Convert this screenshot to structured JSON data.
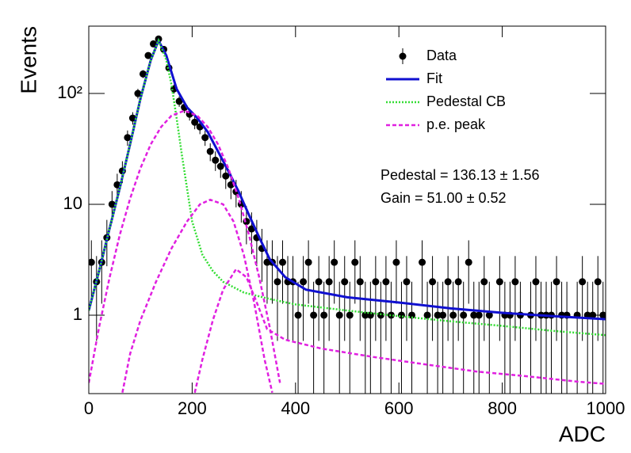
{
  "chart_data": {
    "type": "line",
    "y_label": "Events",
    "x_label": "ADC",
    "xlim": [
      0,
      1000
    ],
    "xticks": [
      0,
      200,
      400,
      600,
      800,
      1000
    ],
    "ylim": [
      0.196,
      405
    ],
    "yticks": [
      1,
      10,
      {
        "value": 100,
        "label": "10²"
      }
    ],
    "log_y": true,
    "legend": "upper right",
    "annotations": [
      "Pedestal = 136.13 ± 1.56",
      "Gain = 51.00 ± 0.52"
    ],
    "series": [
      {
        "name": "Data",
        "type": "errorbar",
        "color": "#000000",
        "x": [
          5,
          15,
          25,
          35,
          45,
          55,
          65,
          75,
          85,
          95,
          105,
          115,
          125,
          135,
          145,
          155,
          165,
          175,
          185,
          195,
          205,
          215,
          225,
          235,
          245,
          255,
          265,
          275,
          285,
          295,
          305,
          315,
          325,
          335,
          345,
          355,
          365,
          375,
          385,
          395,
          405,
          415,
          425,
          435,
          445,
          455,
          465,
          475,
          485,
          495,
          505,
          515,
          525,
          535,
          545,
          555,
          565,
          575,
          585,
          595,
          605,
          615,
          625,
          635,
          645,
          655,
          665,
          675,
          685,
          695,
          705,
          715,
          725,
          735,
          745,
          755,
          765,
          775,
          785,
          795,
          805,
          815,
          825,
          835,
          845,
          855,
          865,
          875,
          885,
          895,
          905,
          915,
          925,
          935,
          945,
          955,
          965,
          975,
          985,
          995
        ],
        "values": [
          3,
          2,
          3,
          5,
          10,
          15,
          20,
          40,
          60,
          100,
          150,
          220,
          280,
          310,
          250,
          170,
          110,
          85,
          75,
          65,
          55,
          50,
          40,
          30,
          25,
          22,
          18,
          15,
          13,
          10,
          7,
          6,
          5,
          4,
          3,
          3,
          2,
          3,
          2,
          2,
          1,
          2,
          3,
          1,
          2,
          1,
          2,
          3,
          1,
          2,
          1,
          3,
          2,
          1,
          1,
          2,
          1,
          2,
          1,
          3,
          1,
          2,
          1,
          null,
          3,
          1,
          2,
          1,
          1,
          2,
          1,
          2,
          1,
          3,
          1,
          1,
          2,
          1,
          null,
          2,
          1,
          1,
          2,
          1,
          null,
          1,
          2,
          1,
          1,
          1,
          2,
          1,
          1,
          null,
          1,
          2,
          1,
          1,
          2,
          1
        ]
      },
      {
        "name": "Fit",
        "type": "line",
        "color": "#1010d0",
        "dash": "none",
        "x": [
          0,
          20,
          40,
          60,
          80,
          100,
          120,
          135,
          150,
          170,
          190,
          210,
          230,
          250,
          270,
          290,
          310,
          330,
          350,
          380,
          420,
          500,
          600,
          700,
          800,
          900,
          1000
        ],
        "values": [
          1.1,
          2.5,
          6,
          14,
          35,
          90,
          200,
          300,
          220,
          110,
          75,
          60,
          45,
          30,
          20,
          13,
          8,
          5,
          3.2,
          2.2,
          1.7,
          1.45,
          1.3,
          1.15,
          1.05,
          0.98,
          0.92
        ]
      },
      {
        "name": "Pedestal CB",
        "type": "line",
        "color": "#33dd33",
        "dash": "2,2",
        "x": [
          0,
          20,
          40,
          60,
          80,
          100,
          120,
          135,
          150,
          160,
          170,
          180,
          190,
          200,
          220,
          240,
          260,
          300,
          350,
          400,
          500,
          600,
          700,
          800,
          900,
          1000
        ],
        "values": [
          1.1,
          2.5,
          6,
          14,
          35,
          90,
          200,
          300,
          200,
          120,
          60,
          28,
          14,
          7,
          3.5,
          2.5,
          2.0,
          1.6,
          1.4,
          1.25,
          1.1,
          0.98,
          0.88,
          0.8,
          0.72,
          0.66
        ]
      },
      {
        "name": "p.e. peak",
        "type": "line",
        "color": "#e020e0",
        "dash": "5,3",
        "x": [
          0,
          20,
          40,
          60,
          80,
          100,
          120,
          140,
          160,
          185,
          210,
          230,
          250,
          270,
          290,
          310,
          330,
          350,
          370,
          null,
          65,
          80,
          100,
          130,
          160,
          190,
          215,
          235,
          260,
          280,
          300,
          320,
          340,
          355,
          null,
          205,
          220,
          240,
          260,
          285,
          305,
          325,
          345,
          380,
          450,
          550,
          650,
          750,
          850,
          950,
          1000
        ],
        "values": [
          0.245,
          0.78,
          2.16,
          5.3,
          11.3,
          21.2,
          34.8,
          50,
          63,
          70,
          63,
          50,
          34.8,
          21.2,
          11.3,
          5.3,
          2.16,
          0.78,
          0.245,
          null,
          0.2,
          0.45,
          0.9,
          2,
          4,
          7,
          10,
          11,
          10,
          7,
          3.5,
          1.3,
          0.4,
          0.2,
          null,
          0.2,
          0.4,
          0.9,
          1.7,
          2.6,
          2.2,
          1.3,
          0.75,
          0.6,
          0.5,
          0.42,
          0.36,
          0.31,
          0.28,
          0.25,
          0.24
        ]
      }
    ]
  }
}
